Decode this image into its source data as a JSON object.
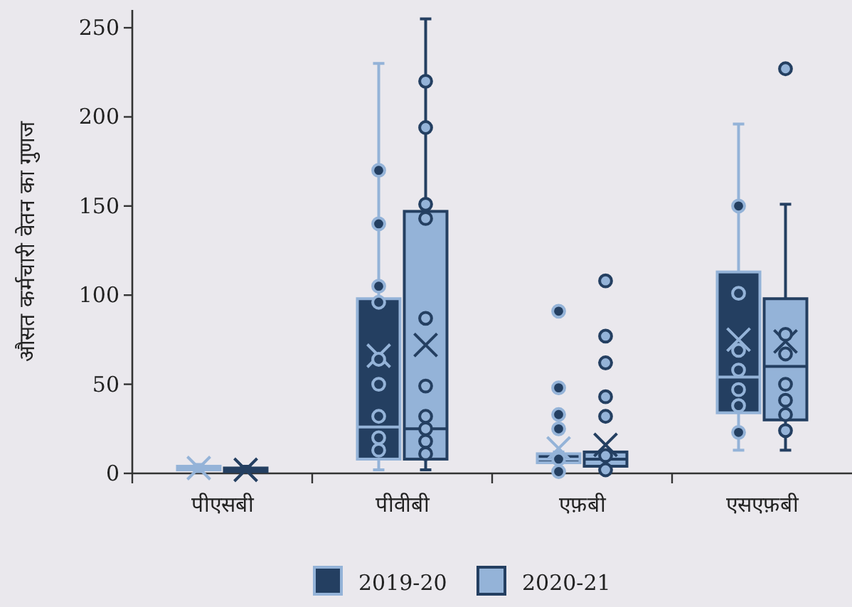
{
  "chart_data": {
    "type": "box",
    "ylabel": "औसत कर्मचारी वेतन का गुणज",
    "categories": [
      "पीएसबी",
      "पीवीबी",
      "एफ़बी",
      "एसएफ़बी"
    ],
    "ylim": [
      0,
      260
    ],
    "yticks": [
      0,
      50,
      100,
      150,
      200,
      250
    ],
    "legend": "bottom",
    "marker": "circle",
    "series": [
      {
        "name": "2019-20",
        "color": "#243f61",
        "boxes": [
          {
            "low": 1,
            "q1": 2,
            "median": 3,
            "q3": 4,
            "high": 5,
            "mean": 3
          },
          {
            "low": 2,
            "q1": 8,
            "median": 26,
            "q3": 98,
            "high": 230,
            "mean": 66
          },
          {
            "low": 1,
            "q1": 6,
            "median": 8,
            "q3": 11,
            "high": 12,
            "mean": 14
          },
          {
            "low": 13,
            "q1": 34,
            "median": 54,
            "q3": 113,
            "high": 196,
            "mean": 75
          }
        ]
      },
      {
        "name": "2020-21",
        "color": "#94b3d8",
        "boxes": [
          {
            "low": 1,
            "q1": 1,
            "median": 2,
            "q3": 3,
            "high": 4,
            "mean": 2
          },
          {
            "low": 2,
            "q1": 8,
            "median": 25,
            "q3": 147,
            "high": 255,
            "mean": 72
          },
          {
            "low": 2,
            "q1": 4,
            "median": 8,
            "q3": 12,
            "high": 12,
            "mean": 16
          },
          {
            "low": 13,
            "q1": 30,
            "median": 60,
            "q3": 98,
            "high": 151,
            "mean": 74
          }
        ]
      },
      {
        "type": "scatter",
        "color": "#243f61",
        "x": [
          "पीवीबी",
          "पीवीबी",
          "पीवीबी",
          "पीवीबी",
          "पीवीबी",
          "पीवीबी",
          "पीवीबी",
          "पीवीबी",
          "पीवीबी",
          "एफ़बी",
          "एफ़बी",
          "एफ़बी",
          "एफ़बी",
          "एफ़बी",
          "एफ़बी",
          "एसएफ़बी",
          "एसएफ़बी",
          "एसएफ़बी",
          "एसएफ़बी",
          "एसएफ़बी",
          "एसएफ़बी",
          "एसएफ़बी"
        ],
        "values": [
          170,
          140,
          105,
          96,
          64,
          50,
          32,
          20,
          13,
          91,
          48,
          33,
          25,
          8,
          1,
          150,
          101,
          69,
          58,
          47,
          38,
          23
        ]
      },
      {
        "type": "scatter",
        "color": "#94b3d8",
        "x": [
          "पीवीबी",
          "पीवीबी",
          "पीवीबी",
          "पीवीबी",
          "पीवीबी",
          "पीवीबी",
          "पीवीबी",
          "पीवीबी",
          "पीवीबी",
          "पीवीबी",
          "एफ़बी",
          "एफ़बी",
          "एफ़बी",
          "एफ़बी",
          "एफ़बी",
          "एफ़बी",
          "एफ़बी",
          "एसएफ़बी",
          "एसएफ़बी",
          "एसएफ़बी",
          "एसएफ़बी",
          "एसएफ़बी",
          "एसएफ़बी",
          "एसएफ़बी"
        ],
        "values": [
          220,
          194,
          151,
          143,
          87,
          49,
          32,
          25,
          18,
          11,
          108,
          77,
          62,
          43,
          32,
          10,
          2,
          227,
          78,
          67,
          50,
          41,
          33,
          24
        ]
      }
    ]
  }
}
